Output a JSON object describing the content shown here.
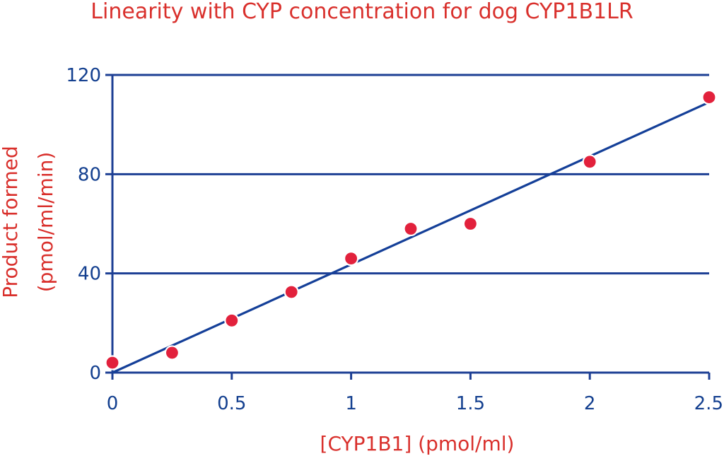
{
  "chart_data": {
    "type": "scatter",
    "title": "Linearity with CYP concentration for dog CYP1B1LR",
    "xlabel": "[CYP1B1] (pmol/ml)",
    "ylabel_lines": [
      "Product formed",
      "(pmol/ml/min)"
    ],
    "xlim": [
      0,
      2.5
    ],
    "ylim": [
      0,
      120
    ],
    "x_ticks": [
      {
        "value": 0,
        "label": "0"
      },
      {
        "value": 0.5,
        "label": "0.5"
      },
      {
        "value": 1,
        "label": "1"
      },
      {
        "value": 1.5,
        "label": "1.5"
      },
      {
        "value": 2,
        "label": "2"
      },
      {
        "value": 2.5,
        "label": "2.5"
      }
    ],
    "y_ticks": [
      {
        "value": 0,
        "label": "0"
      },
      {
        "value": 40,
        "label": "40"
      },
      {
        "value": 80,
        "label": "80"
      },
      {
        "value": 120,
        "label": "120"
      }
    ],
    "grid": true,
    "series": [
      {
        "points": [
          {
            "x": 0,
            "y": 4
          },
          {
            "x": 0.25,
            "y": 8
          },
          {
            "x": 0.5,
            "y": 21
          },
          {
            "x": 0.75,
            "y": 32.5
          },
          {
            "x": 1,
            "y": 46
          },
          {
            "x": 1.25,
            "y": 58
          },
          {
            "x": 1.5,
            "y": 60
          },
          {
            "x": 2,
            "y": 85
          },
          {
            "x": 2.5,
            "y": 111
          }
        ]
      }
    ],
    "trendline": {
      "type": "linear",
      "start": {
        "x": 0,
        "y": 0
      },
      "end": {
        "x": 2.5,
        "y": 109
      }
    },
    "colors": {
      "title": "#d9302c",
      "axis_label": "#d9302c",
      "tick": "#133f8f",
      "grid": "#1d3f94",
      "trendline": "#143f98",
      "marker": "#e2213c"
    }
  }
}
